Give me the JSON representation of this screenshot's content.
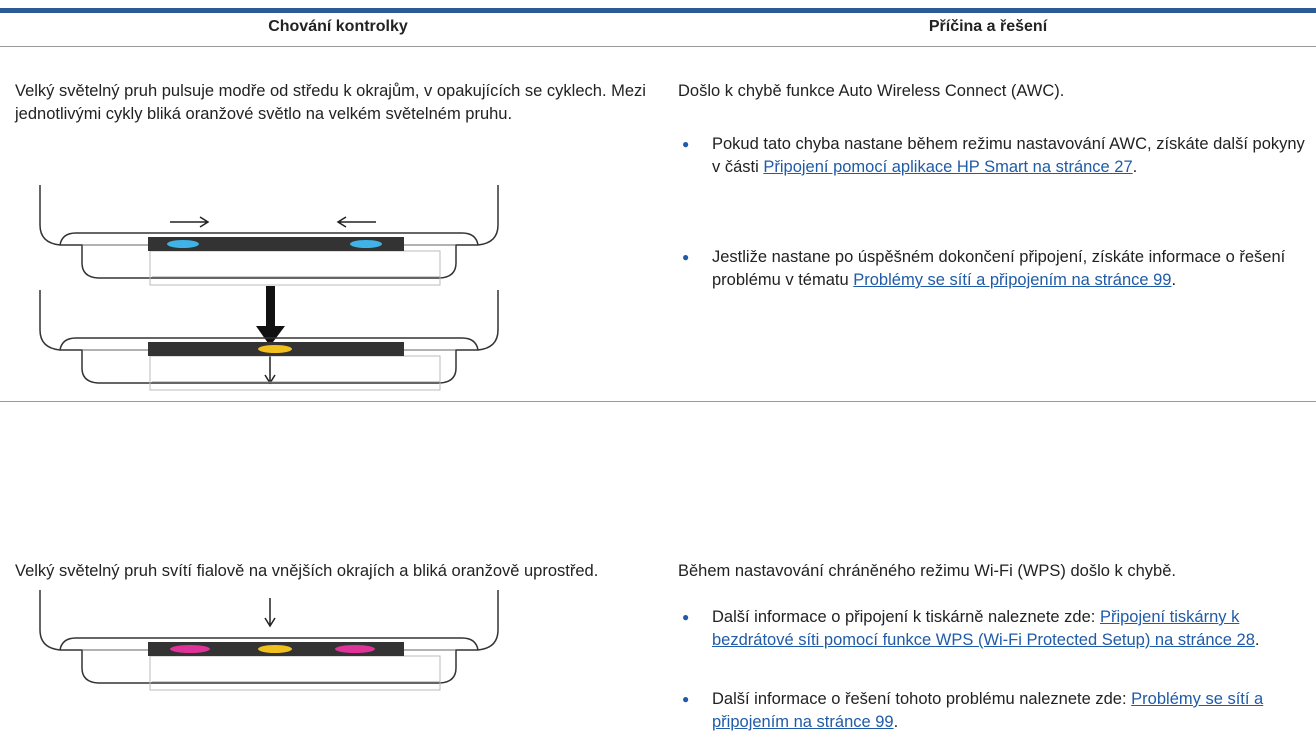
{
  "header": {
    "col1": "Chování kontrolky",
    "col2": "Příčina a řešení"
  },
  "rows": [
    {
      "behavior": "Velký světelný pruh pulsuje modře od středu k okrajům, v opakujících se cyklech. Mezi jednotlivými cykly bliká oranžové světlo na velkém světelném pruhu.",
      "cause": "Došlo k chybě funkce Auto Wireless Connect (AWC).",
      "items": [
        {
          "text": "Pokud tato chyba nastane během režimu nastavování AWC, získáte další pokyny v části",
          "link": "Připojení pomocí aplikace HP Smart na stránce 27",
          "after": "."
        },
        {
          "text": "Jestliže nastane po úspěšném dokončení připojení, získáte informace o řešení problému v tématu",
          "link": "Problémy se sítí a připojením na stránce 99",
          "after": "."
        }
      ]
    },
    {
      "behavior": "Velký světelný pruh svítí fialově na vnějších okrajích a bliká oranžově uprostřed.",
      "cause": "Během nastavování chráněného režimu Wi-Fi (WPS) došlo k chybě.",
      "items": [
        {
          "text": "Další informace o připojení k tiskárně naleznete zde:",
          "link": "Připojení tiskárny k bezdrátové síti pomocí funkce WPS (Wi-Fi Protected Setup) na stránce 28",
          "after": "."
        },
        {
          "text": "Další informace o řešení tohoto problému naleznete zde:",
          "link": "Problémy se sítí a připojením na stránce 99",
          "after": "."
        }
      ]
    }
  ]
}
